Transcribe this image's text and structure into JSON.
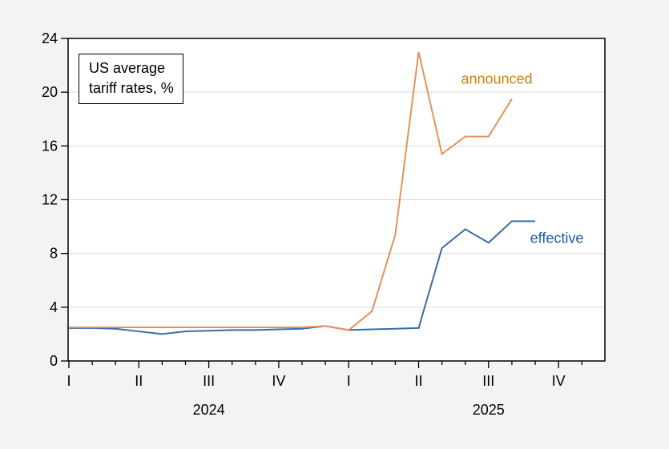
{
  "chart": {
    "title_line1": "US average",
    "title_line2": "tariff rates, %",
    "series_labels": {
      "announced": "announced",
      "effective": "effective"
    }
  },
  "chart_data": {
    "type": "line",
    "title": "US average tariff rates, %",
    "x_unit": "month",
    "months": [
      "2024-01",
      "2024-02",
      "2024-03",
      "2024-04",
      "2024-05",
      "2024-06",
      "2024-07",
      "2024-08",
      "2024-09",
      "2024-10",
      "2024-11",
      "2024-12",
      "2025-01",
      "2025-02",
      "2025-03",
      "2025-04",
      "2025-05",
      "2025-06",
      "2025-07",
      "2025-08",
      "2025-09"
    ],
    "series": [
      {
        "name": "announced",
        "color": "#e2925c",
        "label_color": "#c8830e",
        "values": [
          2.5,
          2.5,
          2.5,
          2.5,
          2.5,
          2.5,
          2.5,
          2.5,
          2.5,
          2.5,
          2.5,
          2.6,
          2.3,
          3.7,
          9.4,
          23.0,
          15.4,
          16.7,
          16.7,
          19.5,
          null
        ]
      },
      {
        "name": "effective",
        "color": "#3a6da2",
        "label_color": "#1c5ba6",
        "values": [
          2.45,
          2.45,
          2.4,
          2.2,
          2.0,
          2.2,
          2.25,
          2.3,
          2.3,
          2.35,
          2.4,
          2.6,
          2.3,
          2.35,
          2.4,
          2.45,
          8.4,
          9.8,
          8.8,
          10.4,
          10.4
        ]
      }
    ],
    "ylim": [
      0,
      24
    ],
    "yticks": [
      0,
      4,
      8,
      12,
      16,
      20,
      24
    ],
    "gridline_values": [
      4,
      8,
      12,
      16,
      20
    ],
    "grid": "horizontal",
    "x_quarter_tick_labels": [
      "I",
      "II",
      "III",
      "IV",
      "I",
      "II",
      "III",
      "IV"
    ],
    "year_labels": [
      "2024",
      "2025"
    ],
    "year_label_months": [
      6,
      18
    ],
    "x_axis_month_count": 23,
    "legend_position": "inline-annotations",
    "plot_bg": "#ffffff",
    "page_bg": "#f3f3f3",
    "gridline_color": "#d9d9d9",
    "axis_color": "#000000"
  }
}
